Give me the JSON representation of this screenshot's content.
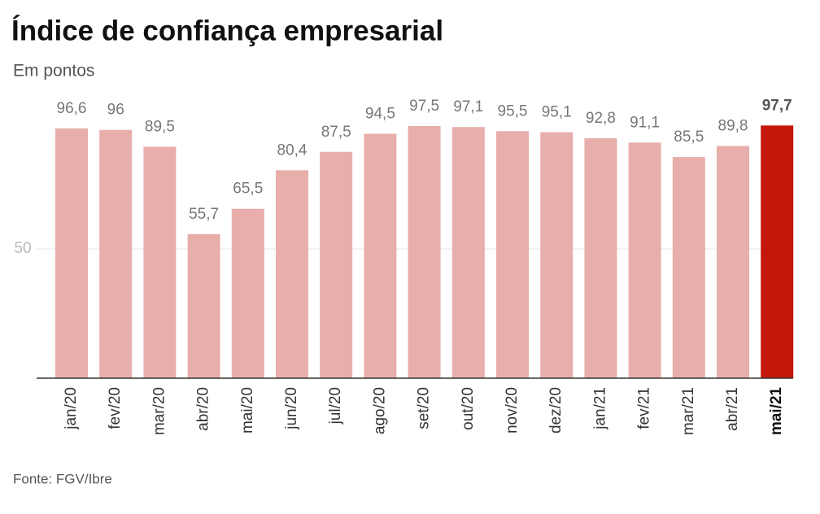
{
  "chart_data": {
    "type": "bar",
    "title": "Índice de confiança empresarial",
    "subtitle": "Em pontos",
    "source": "Fonte: FGV/Ibre",
    "categories": [
      "jan/20",
      "fev/20",
      "mar/20",
      "abr/20",
      "mai/20",
      "jun/20",
      "jul/20",
      "ago/20",
      "set/20",
      "out/20",
      "nov/20",
      "dez/20",
      "jan/21",
      "fev/21",
      "mar/21",
      "abr/21",
      "mai/21"
    ],
    "values": [
      96.6,
      96,
      89.5,
      55.7,
      65.5,
      80.4,
      87.5,
      94.5,
      97.5,
      97.1,
      95.5,
      95.1,
      92.8,
      91.1,
      85.5,
      89.8,
      97.7
    ],
    "value_labels": [
      "96,6",
      "96",
      "89,5",
      "55,7",
      "65,5",
      "80,4",
      "87,5",
      "94,5",
      "97,5",
      "97,1",
      "95,5",
      "95,1",
      "92,8",
      "91,1",
      "85,5",
      "89,8",
      "97,7"
    ],
    "colors": [
      "#e8aeab",
      "#e8aeab",
      "#e8aeab",
      "#e8aeab",
      "#e8aeab",
      "#e8aeab",
      "#e8aeab",
      "#e8aeab",
      "#e8aeab",
      "#e8aeab",
      "#e8aeab",
      "#e8aeab",
      "#e8aeab",
      "#e8aeab",
      "#e8aeab",
      "#e8aeab",
      "#c4170c"
    ],
    "bold": [
      false,
      false,
      false,
      false,
      false,
      false,
      false,
      false,
      false,
      false,
      false,
      false,
      false,
      false,
      false,
      false,
      true
    ],
    "ylim": [
      0,
      100
    ],
    "yticks": [
      50
    ],
    "grid": true
  }
}
